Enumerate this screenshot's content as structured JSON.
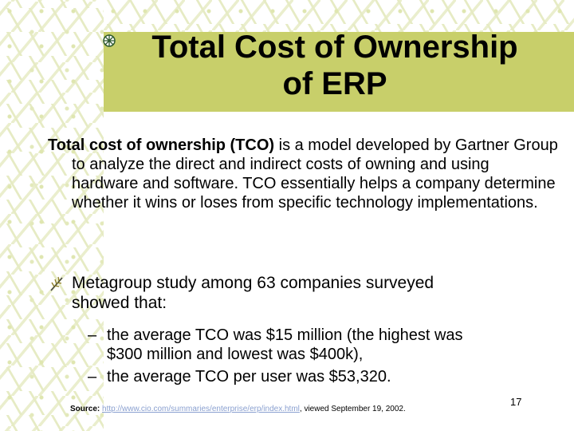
{
  "slide": {
    "title_line1": "Total Cost of Ownership",
    "title_line2": "of ERP",
    "intro_bold": "Total cost of ownership (TCO)",
    "intro_rest": " is a model developed by Gartner Group to analyze the direct and indirect costs of owning and using hardware and software. TCO essentially helps a company determine whether it wins or loses from specific technology implementations.",
    "bullet_line1": "Metagroup study among 63 companies surveyed",
    "bullet_line2": "showed that:",
    "sub_dash": "–",
    "sub1_line1": "the average TCO was $15 million (the highest was",
    "sub1_line2": "$300 million and  lowest was $400k),",
    "sub2": "the average TCO per user was $53,320.",
    "source_label": "Source:",
    "source_link": "http://www.cio.com/summaries/enterprise/erp/index.html",
    "source_rest": ", viewed September 19, 2002.",
    "page_number": "17"
  },
  "colors": {
    "title_band": "#c8cf6a",
    "pattern": "#e6ebc4",
    "link": "#8aa0d0"
  },
  "icons": {
    "title_bullet": "flower-bullet-icon",
    "list_bullet": "sprig-bullet-icon"
  }
}
